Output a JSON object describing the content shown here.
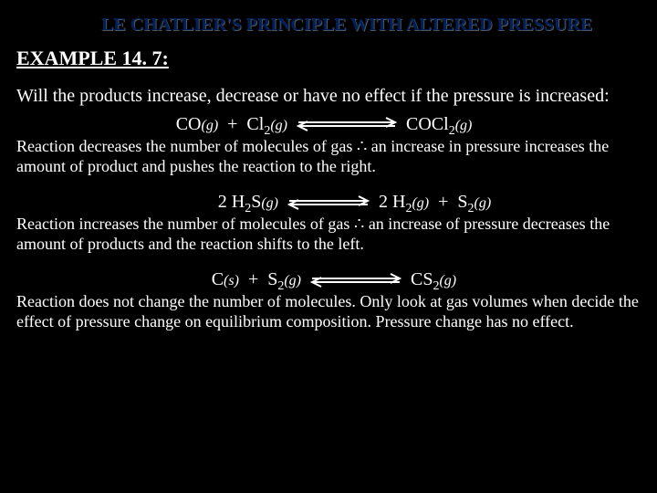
{
  "colors": {
    "background": "#000000",
    "title": "#00205b",
    "text": "#ffffff",
    "arrow_stroke": "#ffffff"
  },
  "title": "LE CHATLIER'S PRINCIPLE WITH ALTERED PRESSURE",
  "example_heading": "EXAMPLE 14. 7:",
  "question": "Will the products increase, decrease or have no effect if the pressure is increased:",
  "equations": [
    {
      "lhs_html": "CO<span class='state'>(g)</span>&nbsp; + &nbsp;Cl<sub>2</sub><span class='state'>(g)</span>",
      "rhs_html": "COCl<sub>2</sub><span class='state'>(g)</span>",
      "left_width": 240,
      "right_width": 200,
      "arrow_width": 110,
      "explanation": "Reaction decreases the number of molecules of gas ∴ an increase in pressure increases the amount of product and pushes the reaction to the right."
    },
    {
      "lhs_html": "2 H<sub>2</sub>S<span class='state'>(g)</span>",
      "rhs_html": "2 H<sub>2</sub><span class='state'>(g)</span>&nbsp; + &nbsp;S<sub>2</sub><span class='state'>(g)</span>",
      "left_width": 200,
      "right_width": 200,
      "arrow_width": 90,
      "explanation": "Reaction increases the number of molecules of gas ∴ an increase of pressure decreases the amount of products and the reaction shifts to the left."
    },
    {
      "lhs_html": "C<span class='state'>(s)</span>&nbsp; + &nbsp;S<sub>2</sub><span class='state'>(g)</span>",
      "rhs_html": "CS<sub>2</sub><span class='state'>(g)</span>",
      "left_width": 220,
      "right_width": 160,
      "arrow_width": 100,
      "explanation": "Reaction does not change the number of molecules. Only look at gas volumes when decide the effect of pressure change on equilibrium composition. Pressure change has no effect."
    }
  ],
  "arrow": {
    "height": 18,
    "stroke_width": 2,
    "head_length": 10,
    "head_height": 5,
    "gap": 4
  }
}
